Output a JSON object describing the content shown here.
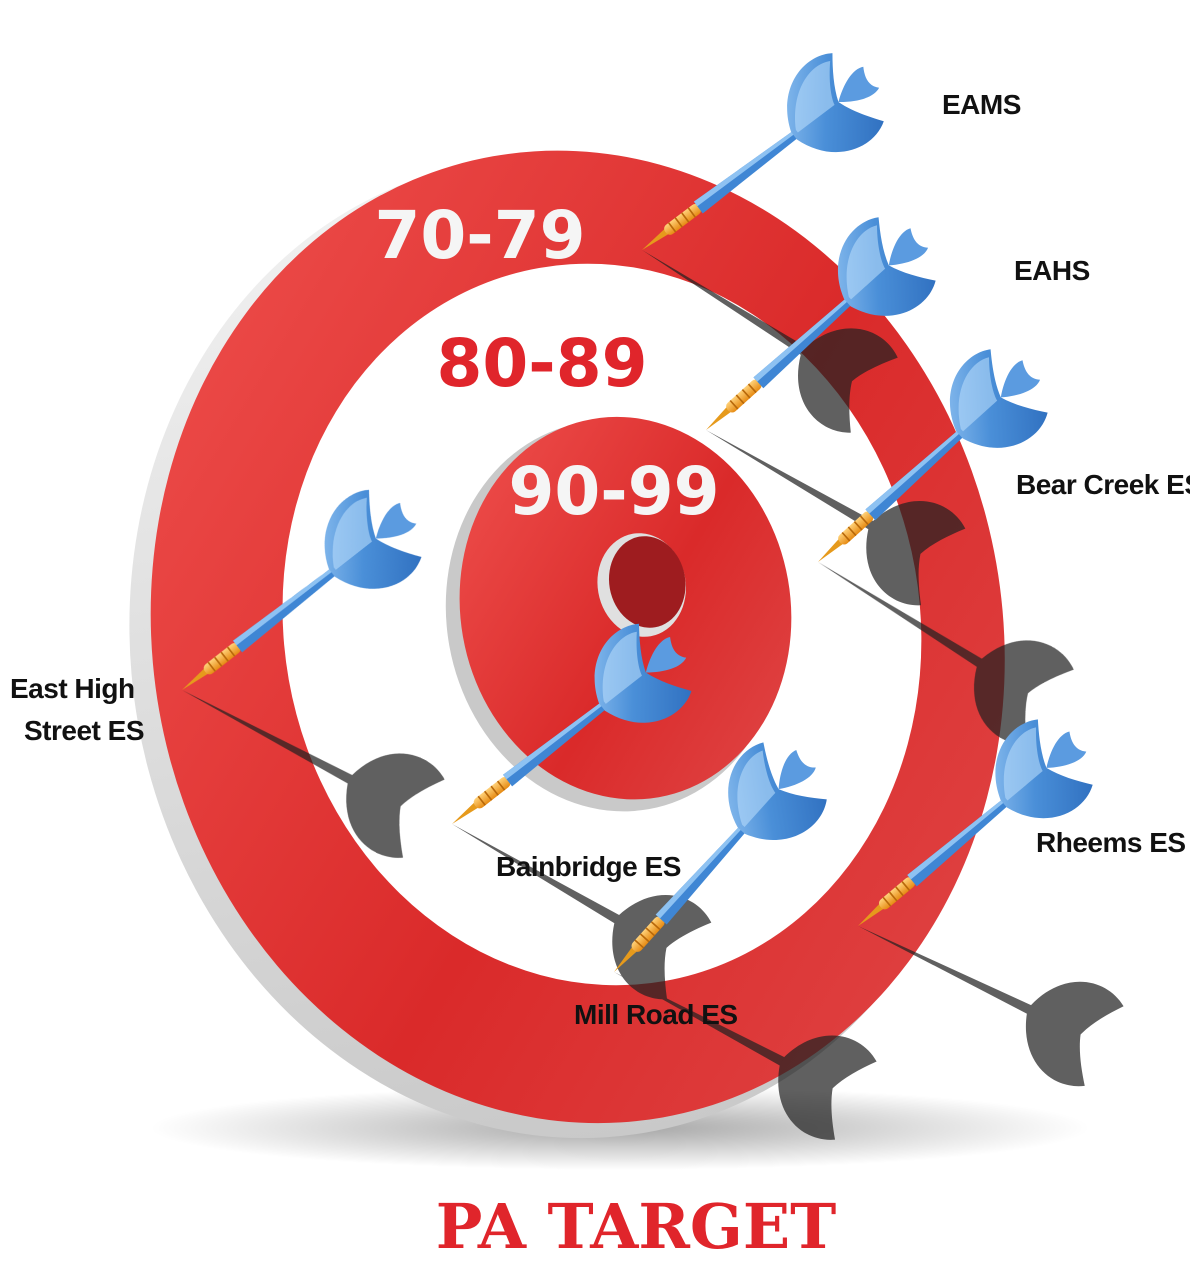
{
  "title": "PA TARGET",
  "rings": [
    {
      "label": "70-79",
      "color": "#f5f5f5"
    },
    {
      "label": "80-89",
      "color": "#e0252b"
    },
    {
      "label": "90-99",
      "color": "#f5f5f5"
    }
  ],
  "schools": [
    {
      "name": "EAMS"
    },
    {
      "name": "EAHS"
    },
    {
      "name": "Bear Creek ES"
    },
    {
      "name": "East High",
      "name2": "Street ES"
    },
    {
      "name": "Bainbridge ES"
    },
    {
      "name": "Rheems ES"
    },
    {
      "name": "Mill Road ES"
    }
  ],
  "colors": {
    "red": "#e0252b",
    "title": "#e0252b",
    "dart": "#3f86d4",
    "dart_band": "#f2a028"
  },
  "icons": {
    "dart": "dart-icon",
    "target": "target-icon"
  }
}
